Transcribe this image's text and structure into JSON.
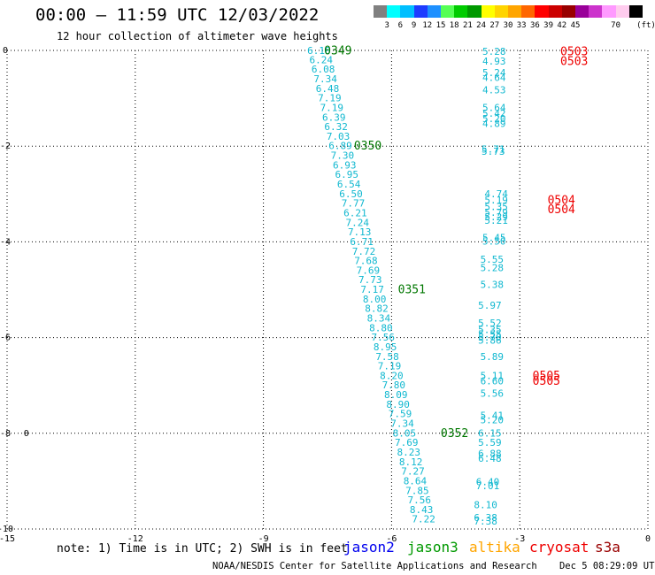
{
  "header": {
    "title": "00:00 – 11:59 UTC 12/03/2022",
    "subtitle": "12 hour collection of altimeter wave heights"
  },
  "color_scale": {
    "swatches": [
      "#808080",
      "#00ffff",
      "#00bfff",
      "#1e3cff",
      "#1e90ff",
      "#55ff55",
      "#00cc00",
      "#009900",
      "#ffff00",
      "#ffd400",
      "#ffa500",
      "#ff6600",
      "#ff0000",
      "#cc0000",
      "#990000",
      "#990099",
      "#cc33cc",
      "#ff99ff",
      "#ffccee",
      "#000000"
    ],
    "ticks": [
      "3",
      "6",
      "9",
      "12",
      "15",
      "18",
      "21",
      "24",
      "27",
      "30",
      "33",
      "36",
      "39",
      "42",
      "45",
      "70"
    ],
    "unit": "(ft)"
  },
  "map": {
    "x_range": [
      -15,
      0
    ],
    "y_range": [
      -10,
      0
    ],
    "x_ticks": [
      "-15",
      "-12",
      "-9",
      "-6",
      "-3",
      "0"
    ],
    "y_ticks": [
      "0",
      "-2",
      "-4",
      "-6",
      "-8",
      "-10"
    ],
    "grid": true,
    "track_color_main": "#11b8d0",
    "pass_label_color": "#007700",
    "cryosat_color": "#ee0000",
    "track1": [
      {
        "lon": -7.7,
        "lat": -0.02,
        "v": "6.18"
      },
      {
        "lon": -7.65,
        "lat": -0.21,
        "v": "6.24"
      },
      {
        "lon": -7.6,
        "lat": -0.41,
        "v": "6.08"
      },
      {
        "lon": -7.55,
        "lat": -0.61,
        "v": "7.34"
      },
      {
        "lon": -7.5,
        "lat": -0.81,
        "v": "6.48"
      },
      {
        "lon": -7.45,
        "lat": -1.01,
        "v": "7.19"
      },
      {
        "lon": -7.4,
        "lat": -1.21,
        "v": "7.19"
      },
      {
        "lon": -7.35,
        "lat": -1.41,
        "v": "6.39"
      },
      {
        "lon": -7.3,
        "lat": -1.61,
        "v": "6.32"
      },
      {
        "lon": -7.25,
        "lat": -1.81,
        "v": "7.03"
      },
      {
        "lon": -7.2,
        "lat": -2.01,
        "v": "6.89"
      },
      {
        "lon": -7.15,
        "lat": -2.21,
        "v": "7.30"
      },
      {
        "lon": -7.1,
        "lat": -2.41,
        "v": "6.93"
      },
      {
        "lon": -7.05,
        "lat": -2.61,
        "v": "6.95"
      },
      {
        "lon": -7.0,
        "lat": -2.81,
        "v": "6.54"
      },
      {
        "lon": -6.95,
        "lat": -3.01,
        "v": "6.50"
      },
      {
        "lon": -6.9,
        "lat": -3.21,
        "v": "7.77"
      },
      {
        "lon": -6.85,
        "lat": -3.41,
        "v": "6.21"
      },
      {
        "lon": -6.8,
        "lat": -3.61,
        "v": "7.24"
      },
      {
        "lon": -6.75,
        "lat": -3.81,
        "v": "7.13"
      },
      {
        "lon": -6.7,
        "lat": -4.01,
        "v": "6.71"
      },
      {
        "lon": -6.65,
        "lat": -4.21,
        "v": "7.72"
      },
      {
        "lon": -6.6,
        "lat": -4.41,
        "v": "7.68"
      },
      {
        "lon": -6.55,
        "lat": -4.61,
        "v": "7.69"
      },
      {
        "lon": -6.5,
        "lat": -4.81,
        "v": "7.73"
      },
      {
        "lon": -6.45,
        "lat": -5.01,
        "v": "7.17"
      },
      {
        "lon": -6.4,
        "lat": -5.21,
        "v": "8.00"
      },
      {
        "lon": -6.35,
        "lat": -5.41,
        "v": "8.82"
      },
      {
        "lon": -6.3,
        "lat": -5.61,
        "v": "8.34"
      },
      {
        "lon": -6.25,
        "lat": -5.81,
        "v": "8.80"
      },
      {
        "lon": -6.2,
        "lat": -6.01,
        "v": "7.56"
      },
      {
        "lon": -6.15,
        "lat": -6.21,
        "v": "8.95"
      },
      {
        "lon": -6.1,
        "lat": -6.41,
        "v": "7.58"
      },
      {
        "lon": -6.05,
        "lat": -6.61,
        "v": "7.19"
      },
      {
        "lon": -6.0,
        "lat": -6.81,
        "v": "8.20"
      },
      {
        "lon": -5.95,
        "lat": -7.01,
        "v": "7.80"
      },
      {
        "lon": -5.9,
        "lat": -7.21,
        "v": "8.09"
      },
      {
        "lon": -5.85,
        "lat": -7.41,
        "v": "8.90"
      },
      {
        "lon": -5.8,
        "lat": -7.61,
        "v": "7.59"
      },
      {
        "lon": -5.75,
        "lat": -7.81,
        "v": "7.34"
      },
      {
        "lon": -5.7,
        "lat": -8.01,
        "v": "8.05"
      },
      {
        "lon": -5.65,
        "lat": -8.21,
        "v": "7.69"
      },
      {
        "lon": -5.6,
        "lat": -8.41,
        "v": "8.23"
      },
      {
        "lon": -5.55,
        "lat": -8.61,
        "v": "8.12"
      },
      {
        "lon": -5.5,
        "lat": -8.81,
        "v": "7.27"
      },
      {
        "lon": -5.45,
        "lat": -9.01,
        "v": "8.64"
      },
      {
        "lon": -5.4,
        "lat": -9.21,
        "v": "7.85"
      },
      {
        "lon": -5.35,
        "lat": -9.41,
        "v": "7.56"
      },
      {
        "lon": -5.3,
        "lat": -9.61,
        "v": "8.43"
      },
      {
        "lon": -5.25,
        "lat": -9.81,
        "v": "7.22"
      }
    ],
    "pass_labels": [
      {
        "lon": -7.58,
        "lat": -0.02,
        "t": "0349"
      },
      {
        "lon": -6.88,
        "lat": -2.01,
        "t": "0350"
      },
      {
        "lon": -5.85,
        "lat": -5.01,
        "t": "0351"
      },
      {
        "lon": -4.85,
        "lat": -8.01,
        "t": "0352"
      }
    ],
    "track2": [
      {
        "lon": -3.6,
        "lat": -0.04,
        "v": "5.28"
      },
      {
        "lon": -3.6,
        "lat": -0.24,
        "v": "4.93"
      },
      {
        "lon": -3.6,
        "lat": -0.48,
        "v": "5.24"
      },
      {
        "lon": -3.6,
        "lat": -0.58,
        "v": "4.64"
      },
      {
        "lon": -3.6,
        "lat": -0.84,
        "v": "4.53"
      },
      {
        "lon": -3.6,
        "lat": -1.21,
        "v": "5.64"
      },
      {
        "lon": -3.6,
        "lat": -1.33,
        "v": "5.42"
      },
      {
        "lon": -3.6,
        "lat": -1.44,
        "v": "5.20"
      },
      {
        "lon": -3.6,
        "lat": -1.54,
        "v": "4.89"
      },
      {
        "lon": -3.62,
        "lat": -2.08,
        "v": "5.71"
      },
      {
        "lon": -3.62,
        "lat": -2.13,
        "v": "5.73"
      },
      {
        "lon": -3.55,
        "lat": -3.01,
        "v": "4.74"
      },
      {
        "lon": -3.55,
        "lat": -3.14,
        "v": "5.19"
      },
      {
        "lon": -3.55,
        "lat": -3.28,
        "v": "5.35"
      },
      {
        "lon": -3.55,
        "lat": -3.4,
        "v": "5.79"
      },
      {
        "lon": -3.55,
        "lat": -3.49,
        "v": "5.29"
      },
      {
        "lon": -3.55,
        "lat": -3.57,
        "v": "5.21"
      },
      {
        "lon": -3.6,
        "lat": -3.93,
        "v": "5.45"
      },
      {
        "lon": -3.6,
        "lat": -4.0,
        "v": "5.50"
      },
      {
        "lon": -3.65,
        "lat": -4.38,
        "v": "5.55"
      },
      {
        "lon": -3.65,
        "lat": -4.56,
        "v": "5.28"
      },
      {
        "lon": -3.65,
        "lat": -4.91,
        "v": "5.38"
      },
      {
        "lon": -3.7,
        "lat": -5.34,
        "v": "5.97"
      },
      {
        "lon": -3.7,
        "lat": -5.71,
        "v": "5.52"
      },
      {
        "lon": -3.7,
        "lat": -5.85,
        "v": "5.35"
      },
      {
        "lon": -3.7,
        "lat": -5.94,
        "v": "5.55"
      },
      {
        "lon": -3.7,
        "lat": -6.01,
        "v": "5.70"
      },
      {
        "lon": -3.7,
        "lat": -6.07,
        "v": "5.86"
      },
      {
        "lon": -3.65,
        "lat": -6.41,
        "v": "5.89"
      },
      {
        "lon": -3.65,
        "lat": -6.81,
        "v": "5.11"
      },
      {
        "lon": -3.65,
        "lat": -6.92,
        "v": "6.60"
      },
      {
        "lon": -3.65,
        "lat": -7.18,
        "v": "5.56"
      },
      {
        "lon": -3.65,
        "lat": -7.64,
        "v": "5.41"
      },
      {
        "lon": -3.65,
        "lat": -7.74,
        "v": "5.20"
      },
      {
        "lon": -3.7,
        "lat": -8.01,
        "v": "6.15"
      },
      {
        "lon": -3.7,
        "lat": -8.21,
        "v": "5.59"
      },
      {
        "lon": -3.7,
        "lat": -8.44,
        "v": "6.88"
      },
      {
        "lon": -3.7,
        "lat": -8.54,
        "v": "6.48"
      },
      {
        "lon": -3.75,
        "lat": -9.03,
        "v": "6.40"
      },
      {
        "lon": -3.75,
        "lat": -9.11,
        "v": "7.01"
      },
      {
        "lon": -3.8,
        "lat": -9.51,
        "v": "8.10"
      },
      {
        "lon": -3.8,
        "lat": -9.78,
        "v": "6.38"
      },
      {
        "lon": -3.8,
        "lat": -9.85,
        "v": "7.38"
      }
    ],
    "cryosat_labels": [
      {
        "lon": -2.05,
        "lat": -0.04,
        "t": "0503"
      },
      {
        "lon": -2.05,
        "lat": -0.24,
        "t": "0503"
      },
      {
        "lon": -2.35,
        "lat": -3.14,
        "t": "0504"
      },
      {
        "lon": -2.35,
        "lat": -3.34,
        "t": "0504"
      },
      {
        "lon": -2.7,
        "lat": -6.81,
        "t": "0505"
      },
      {
        "lon": -2.7,
        "lat": -6.92,
        "t": "0505"
      }
    ],
    "marker": {
      "lon": -14.55,
      "lat": -8.0,
      "t": "0"
    }
  },
  "footer": {
    "note": "note: 1) Time is in UTC; 2) SWH is in feet",
    "credit": "NOAA/NESDIS Center for Satellite Applications and Research",
    "timestamp": "Dec  5 08:29:09 UTC 2022",
    "missions": [
      {
        "name": "jason2",
        "color": "#0000ee"
      },
      {
        "name": "jason3",
        "color": "#009900"
      },
      {
        "name": "altika",
        "color": "#ffa500"
      },
      {
        "name": "cryosat",
        "color": "#ee0000"
      },
      {
        "name": "s3a",
        "color": "#990000"
      }
    ]
  }
}
